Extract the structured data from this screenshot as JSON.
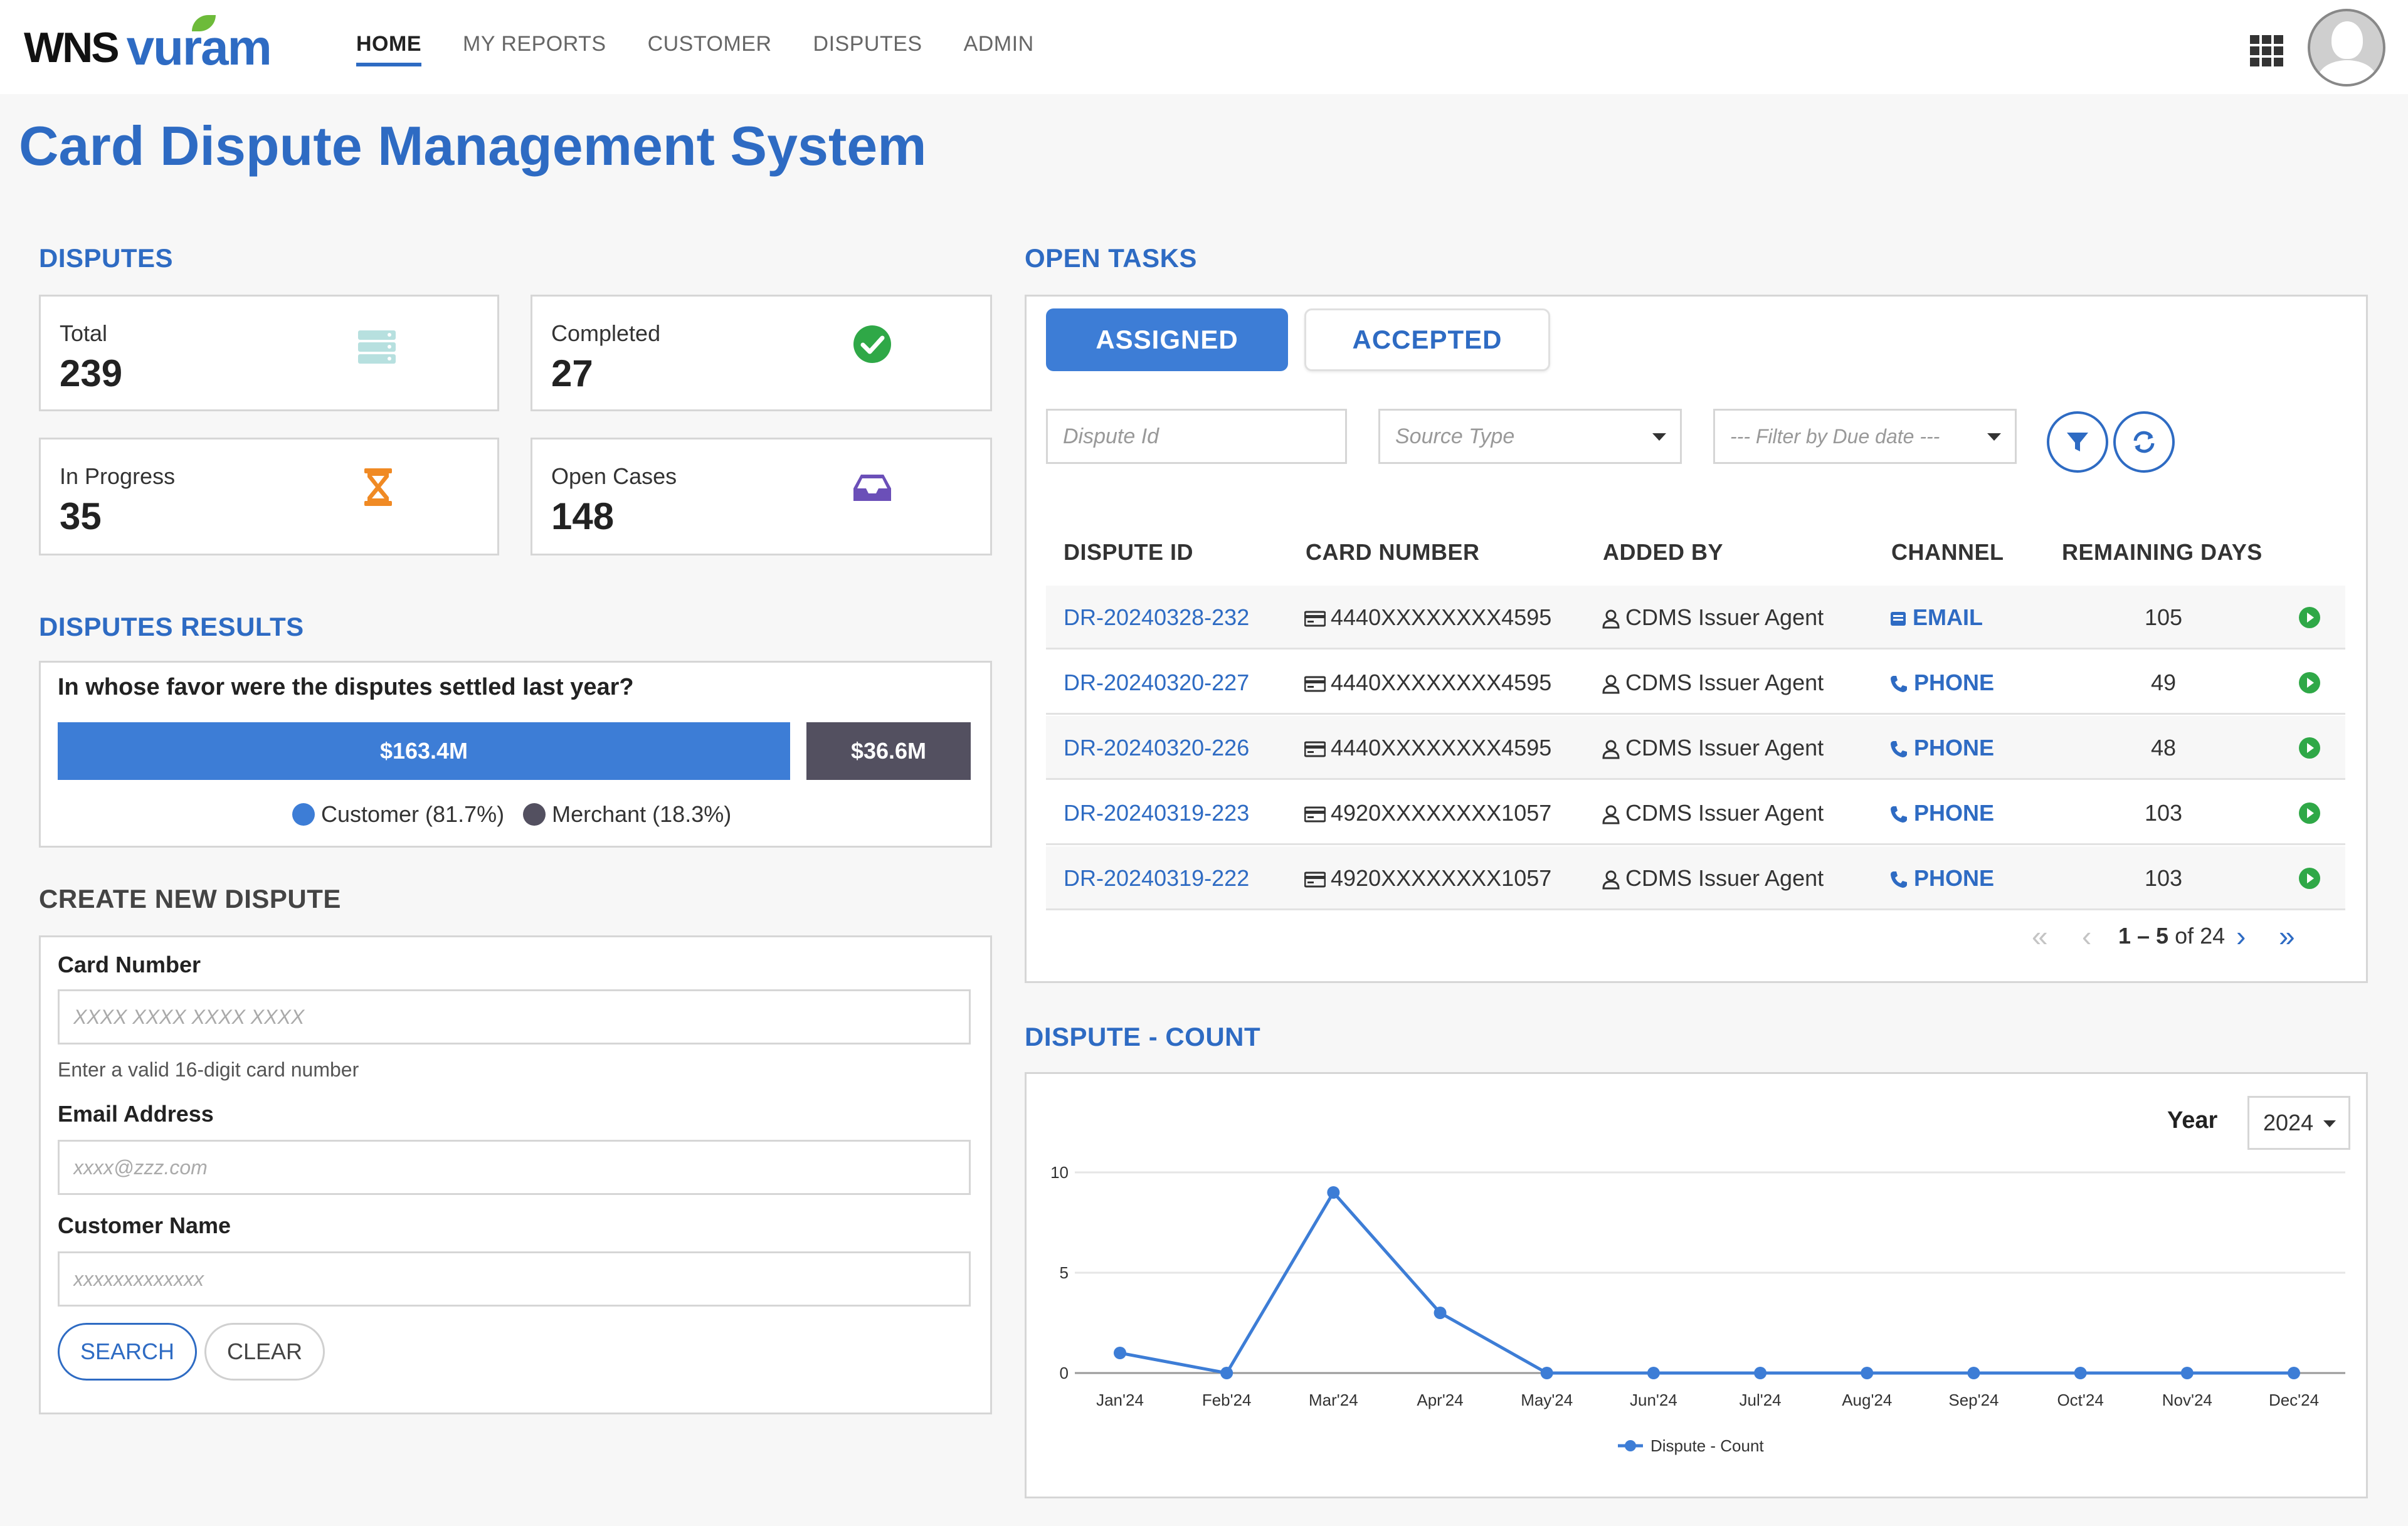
{
  "nav": {
    "logo_wns": "WNS",
    "logo_vuram": "vuram",
    "links": [
      {
        "label": "HOME",
        "active": true
      },
      {
        "label": "MY REPORTS",
        "active": false
      },
      {
        "label": "CUSTOMER",
        "active": false
      },
      {
        "label": "DISPUTES",
        "active": false
      },
      {
        "label": "ADMIN",
        "active": false
      }
    ],
    "apps_icon": "grid-icon",
    "avatar_icon": "user-avatar-icon"
  },
  "page": {
    "title": "Card Dispute Management System"
  },
  "disputes": {
    "title": "DISPUTES",
    "stats": [
      {
        "label": "Total",
        "value": "239",
        "icon": "server-icon",
        "color": "#b7e0df"
      },
      {
        "label": "Completed",
        "value": "27",
        "icon": "check-circle-icon",
        "color": "#2fa847"
      },
      {
        "label": "In Progress",
        "value": "35",
        "icon": "hourglass-icon",
        "color": "#f08a24"
      },
      {
        "label": "Open Cases",
        "value": "148",
        "icon": "inbox-icon",
        "color": "#6b4fb8"
      }
    ]
  },
  "results": {
    "title": "DISPUTES RESULTS",
    "question": "In whose favor were the disputes settled last year?",
    "segments": [
      {
        "label": "$163.4M",
        "share": 0.817,
        "color": "#3d7dd6"
      },
      {
        "label": "$36.6M",
        "share": 0.183,
        "color": "#535060"
      }
    ],
    "legend": [
      {
        "label": "Customer (81.7%)",
        "color": "#3d7dd6"
      },
      {
        "label": "Merchant (18.3%)",
        "color": "#535060"
      }
    ]
  },
  "create": {
    "title": "CREATE NEW DISPUTE",
    "card_label": "Card Number",
    "card_placeholder": "XXXX XXXX XXXX XXXX",
    "card_help": "Enter a valid 16-digit card number",
    "email_label": "Email Address",
    "email_placeholder": "xxxx@zzz.com",
    "name_label": "Customer Name",
    "name_placeholder": "xxxxxxxxxxxxx",
    "search_label": "SEARCH",
    "clear_label": "CLEAR"
  },
  "tasks": {
    "title": "OPEN TASKS",
    "tabs": [
      {
        "label": "ASSIGNED",
        "active": true
      },
      {
        "label": "ACCEPTED",
        "active": false
      }
    ],
    "filters": {
      "dispute_id_placeholder": "Dispute Id",
      "source_type_placeholder": "Source Type",
      "due_date_placeholder": "--- Filter by Due date ---"
    },
    "columns": [
      "DISPUTE ID",
      "CARD NUMBER",
      "ADDED BY",
      "CHANNEL",
      "REMAINING DAYS"
    ],
    "rows": [
      {
        "id": "DR-20240328-232",
        "card": "4440XXXXXXXX4595",
        "added_by": "CDMS Issuer Agent",
        "channel": "EMAIL",
        "channel_icon": "email-icon",
        "days": "105"
      },
      {
        "id": "DR-20240320-227",
        "card": "4440XXXXXXXX4595",
        "added_by": "CDMS Issuer Agent",
        "channel": "PHONE",
        "channel_icon": "phone-icon",
        "days": "49"
      },
      {
        "id": "DR-20240320-226",
        "card": "4440XXXXXXXX4595",
        "added_by": "CDMS Issuer Agent",
        "channel": "PHONE",
        "channel_icon": "phone-icon",
        "days": "48"
      },
      {
        "id": "DR-20240319-223",
        "card": "4920XXXXXXXX1057",
        "added_by": "CDMS Issuer Agent",
        "channel": "PHONE",
        "channel_icon": "phone-icon",
        "days": "103"
      },
      {
        "id": "DR-20240319-222",
        "card": "4920XXXXXXXX1057",
        "added_by": "CDMS Issuer Agent",
        "channel": "PHONE",
        "channel_icon": "phone-icon",
        "days": "103"
      }
    ],
    "pager": {
      "range": "1 – 5",
      "of_text": "of 24"
    }
  },
  "dispute_count": {
    "title": "DISPUTE - COUNT",
    "year_label": "Year",
    "year_value": "2024"
  },
  "chart_data": {
    "type": "line",
    "title": "",
    "categories": [
      "Jan'24",
      "Feb'24",
      "Mar'24",
      "Apr'24",
      "May'24",
      "Jun'24",
      "Jul'24",
      "Aug'24",
      "Sep'24",
      "Oct'24",
      "Nov'24",
      "Dec'24"
    ],
    "series": [
      {
        "name": "Dispute - Count",
        "values": [
          1,
          0,
          9,
          3,
          0,
          0,
          0,
          0,
          0,
          0,
          0,
          0
        ],
        "color": "#3d7dd6"
      }
    ],
    "yticks": [
      0,
      5,
      10
    ],
    "ylim": [
      0,
      10
    ],
    "grid": true,
    "legend": "bottom"
  }
}
